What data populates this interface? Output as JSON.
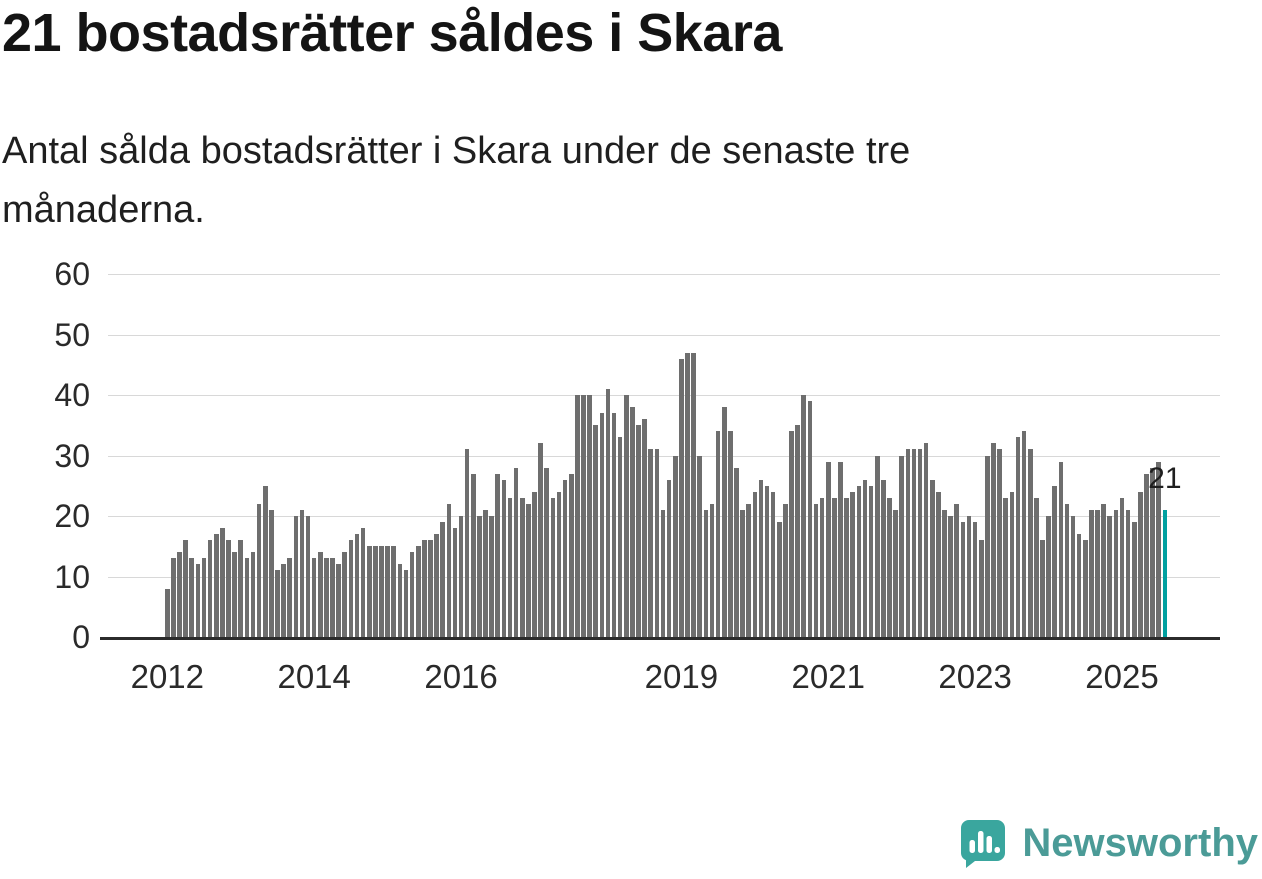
{
  "title": "21 bostadsrätter såldes i Skara",
  "subtitle": "Antal sålda bostadsrätter i Skara under de senaste tre månaderna.",
  "footer": {
    "brand": "Newsworthy"
  },
  "colors": {
    "bar": "#6e6e6e",
    "highlight": "#00a0a0",
    "grid": "#d8d8d8",
    "axis": "#2b2b2b",
    "brand_icon": "#3aa69e",
    "brand_text": "#4b9b97"
  },
  "chart_data": {
    "type": "bar",
    "title": "21 bostadsrätter såldes i Skara",
    "subtitle": "Antal sålda bostadsrätter i Skara under de senaste tre månaderna.",
    "x_start": "2012-01",
    "x_end": "2025-08",
    "ylim": [
      0,
      60
    ],
    "yticks": [
      0,
      10,
      20,
      30,
      40,
      50,
      60
    ],
    "xticks": [
      {
        "label": "2012",
        "index": 0
      },
      {
        "label": "2014",
        "index": 24
      },
      {
        "label": "2016",
        "index": 48
      },
      {
        "label": "2019",
        "index": 84
      },
      {
        "label": "2021",
        "index": 108
      },
      {
        "label": "2023",
        "index": 132
      },
      {
        "label": "2025",
        "index": 156
      }
    ],
    "values": [
      8,
      13,
      14,
      16,
      13,
      12,
      13,
      16,
      17,
      18,
      16,
      14,
      16,
      13,
      14,
      22,
      25,
      21,
      11,
      12,
      13,
      20,
      21,
      20,
      13,
      14,
      13,
      13,
      12,
      14,
      16,
      17,
      18,
      15,
      15,
      15,
      15,
      15,
      12,
      11,
      14,
      15,
      16,
      16,
      17,
      19,
      22,
      18,
      20,
      31,
      27,
      20,
      21,
      20,
      27,
      26,
      23,
      28,
      23,
      22,
      24,
      32,
      28,
      23,
      24,
      26,
      27,
      40,
      40,
      40,
      35,
      37,
      41,
      37,
      33,
      40,
      38,
      35,
      36,
      31,
      31,
      21,
      26,
      30,
      46,
      47,
      47,
      30,
      21,
      22,
      34,
      38,
      34,
      28,
      21,
      22,
      24,
      26,
      25,
      24,
      19,
      22,
      34,
      35,
      40,
      39,
      22,
      23,
      29,
      23,
      29,
      23,
      24,
      25,
      26,
      25,
      30,
      26,
      23,
      21,
      30,
      31,
      31,
      31,
      32,
      26,
      24,
      21,
      20,
      22,
      19,
      20,
      19,
      16,
      30,
      32,
      31,
      23,
      24,
      33,
      34,
      31,
      23,
      16,
      20,
      25,
      29,
      22,
      20,
      17,
      16,
      21,
      21,
      22,
      20,
      21,
      23,
      21,
      19,
      24,
      27,
      28,
      29,
      21
    ],
    "highlight_last": true,
    "last_label": "21",
    "grid": true,
    "legend": false
  }
}
